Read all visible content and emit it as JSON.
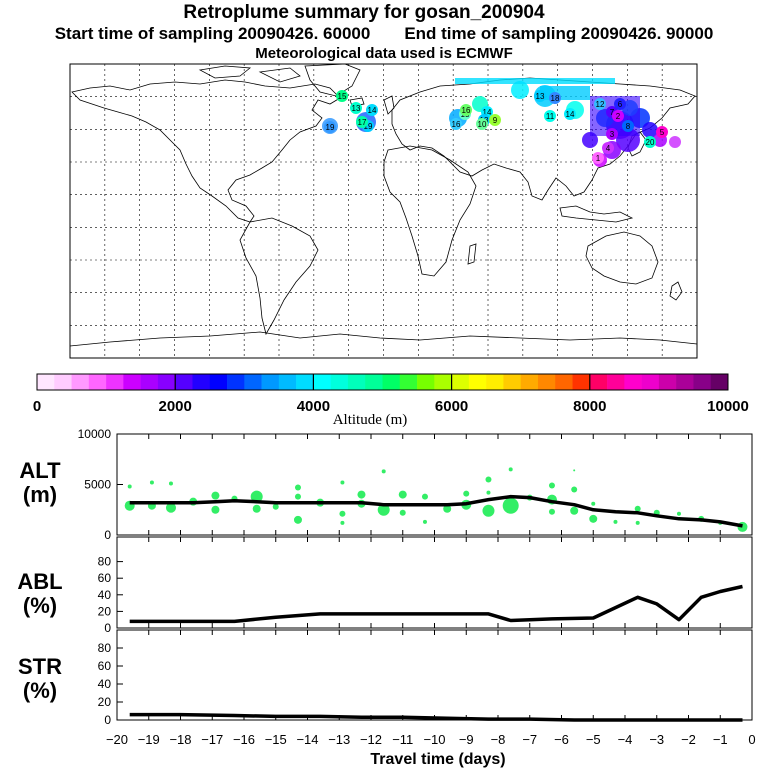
{
  "header": {
    "title": "Retroplume summary for gosan_200904",
    "start_label": "Start time of sampling 20090426. 60000",
    "end_label": "End time of sampling 20090426. 90000",
    "met_label": "Meteorological data used is ECMWF"
  },
  "colorbar": {
    "ticks": [
      "0",
      "2000",
      "4000",
      "6000",
      "8000",
      "10000"
    ],
    "label": "Altitude (m)",
    "colors": [
      "#ffe6ff",
      "#ffccff",
      "#ff99ff",
      "#ff66ff",
      "#ee33ff",
      "#cc00ff",
      "#aa00ff",
      "#8800ff",
      "#5500ff",
      "#2200ff",
      "#0000ff",
      "#0033ff",
      "#0066ff",
      "#0099ff",
      "#00bbff",
      "#00ddff",
      "#00ffff",
      "#00ffdd",
      "#00ffbb",
      "#00ff99",
      "#00ff66",
      "#33ff33",
      "#77ff00",
      "#aaff00",
      "#ddff00",
      "#ffff00",
      "#ffee00",
      "#ffcc00",
      "#ffaa00",
      "#ff8800",
      "#ff6600",
      "#ff3300",
      "#ff0066",
      "#ff0099",
      "#ff00cc",
      "#ee00cc",
      "#cc00aa",
      "#aa0099",
      "#880088",
      "#660066"
    ]
  },
  "map": {
    "labels": [
      "19",
      "19",
      "13",
      "14",
      "13",
      "16",
      "14",
      "13",
      "9",
      "10",
      "11",
      "13",
      "14",
      "12",
      "7",
      "6",
      "4",
      "8",
      "3",
      "5",
      "2",
      "1",
      "16",
      "15",
      "17",
      "18",
      "20"
    ],
    "label_colors": [
      "#3399ff",
      "#00ccff",
      "#00ffcc",
      "#00ddff",
      "#66ffcc",
      "#33ccff",
      "#00eeff",
      "#00ccff",
      "#99ff33",
      "#66ff99",
      "#00ffee",
      "#00ccff",
      "#00eeff",
      "#33bbff",
      "#5500ff",
      "#2222ff",
      "#cc33ff",
      "#0066ff",
      "#aa00ff",
      "#ff00cc",
      "#cc00ff",
      "#ff66ff",
      "#66ff66",
      "#00ff88",
      "#00ffaa",
      "#3388ff",
      "#00ffcc"
    ]
  },
  "chart_data": [
    {
      "type": "line",
      "panel_label": "ALT",
      "unit_label": "(m)",
      "ylim": [
        0,
        10000
      ],
      "yticks": [
        0,
        5000,
        10000
      ],
      "x": [
        -19.6,
        -18.9,
        -18.3,
        -17.6,
        -16.9,
        -16.3,
        -15.6,
        -15,
        -14.3,
        -13.6,
        -12.9,
        -12.3,
        -11.6,
        -11,
        -10.3,
        -9.6,
        -9,
        -8.3,
        -7.6,
        -7,
        -6.3,
        -5.6,
        -5,
        -4.3,
        -3.6,
        -3,
        -2.3,
        -1.6,
        -1,
        -0.3
      ],
      "values": [
        3200,
        3200,
        3200,
        3200,
        3300,
        3400,
        3300,
        3200,
        3200,
        3200,
        3200,
        3200,
        3000,
        3000,
        3000,
        3000,
        3100,
        3500,
        3800,
        3700,
        3300,
        3000,
        2500,
        2300,
        2200,
        1900,
        1600,
        1500,
        1300,
        900
      ],
      "xlabel": "Travel time (days)",
      "points": [
        {
          "x": -19.6,
          "y": 4800,
          "r": 2
        },
        {
          "x": -19.6,
          "y": 2900,
          "r": 5
        },
        {
          "x": -18.9,
          "y": 5200,
          "r": 2
        },
        {
          "x": -18.9,
          "y": 2900,
          "r": 4
        },
        {
          "x": -18.3,
          "y": 5100,
          "r": 2
        },
        {
          "x": -18.3,
          "y": 2700,
          "r": 5
        },
        {
          "x": -17.6,
          "y": 3300,
          "r": 4
        },
        {
          "x": -16.9,
          "y": 3900,
          "r": 4
        },
        {
          "x": -16.9,
          "y": 2500,
          "r": 4
        },
        {
          "x": -16.3,
          "y": 3600,
          "r": 3
        },
        {
          "x": -15.6,
          "y": 3800,
          "r": 6
        },
        {
          "x": -15.6,
          "y": 2600,
          "r": 4
        },
        {
          "x": -15,
          "y": 2800,
          "r": 3
        },
        {
          "x": -14.3,
          "y": 4700,
          "r": 3
        },
        {
          "x": -14.3,
          "y": 3800,
          "r": 3
        },
        {
          "x": -14.3,
          "y": 1500,
          "r": 4
        },
        {
          "x": -13.6,
          "y": 3200,
          "r": 4
        },
        {
          "x": -12.9,
          "y": 5200,
          "r": 2
        },
        {
          "x": -12.9,
          "y": 2100,
          "r": 3
        },
        {
          "x": -12.9,
          "y": 1200,
          "r": 2
        },
        {
          "x": -12.3,
          "y": 4000,
          "r": 4
        },
        {
          "x": -12.3,
          "y": 3100,
          "r": 4
        },
        {
          "x": -11.6,
          "y": 6300,
          "r": 2
        },
        {
          "x": -11.6,
          "y": 2500,
          "r": 6
        },
        {
          "x": -11,
          "y": 4000,
          "r": 4
        },
        {
          "x": -11,
          "y": 2200,
          "r": 3
        },
        {
          "x": -10.3,
          "y": 1300,
          "r": 2
        },
        {
          "x": -10.3,
          "y": 3800,
          "r": 3
        },
        {
          "x": -9.6,
          "y": 2600,
          "r": 4
        },
        {
          "x": -9,
          "y": 4100,
          "r": 3
        },
        {
          "x": -9,
          "y": 3000,
          "r": 5
        },
        {
          "x": -8.3,
          "y": 5500,
          "r": 3
        },
        {
          "x": -8.3,
          "y": 4200,
          "r": 2
        },
        {
          "x": -8.3,
          "y": 2400,
          "r": 6
        },
        {
          "x": -7.6,
          "y": 6500,
          "r": 2
        },
        {
          "x": -7.6,
          "y": 2900,
          "r": 8
        },
        {
          "x": -7,
          "y": 3700,
          "r": 3
        },
        {
          "x": -6.3,
          "y": 4900,
          "r": 3
        },
        {
          "x": -6.3,
          "y": 3500,
          "r": 5
        },
        {
          "x": -6.3,
          "y": 2300,
          "r": 3
        },
        {
          "x": -5.6,
          "y": 6400,
          "r": 1
        },
        {
          "x": -5.6,
          "y": 4500,
          "r": 3
        },
        {
          "x": -5.6,
          "y": 2400,
          "r": 4
        },
        {
          "x": -5,
          "y": 3100,
          "r": 2
        },
        {
          "x": -5,
          "y": 1600,
          "r": 4
        },
        {
          "x": -4.3,
          "y": 1300,
          "r": 2
        },
        {
          "x": -3.6,
          "y": 2600,
          "r": 3
        },
        {
          "x": -3.6,
          "y": 1200,
          "r": 2
        },
        {
          "x": -3,
          "y": 2200,
          "r": 3
        },
        {
          "x": -2.3,
          "y": 2100,
          "r": 2
        },
        {
          "x": -1.6,
          "y": 1600,
          "r": 3
        },
        {
          "x": -1,
          "y": 1200,
          "r": 2
        },
        {
          "x": -0.3,
          "y": 800,
          "r": 5
        }
      ]
    },
    {
      "type": "line",
      "panel_label": "ABL",
      "unit_label": "(%)",
      "ylim": [
        0,
        100
      ],
      "yticks": [
        0,
        20,
        40,
        60,
        80
      ],
      "x": [
        -19.6,
        -18,
        -16.6,
        -16.3,
        -15,
        -13.6,
        -12.3,
        -11,
        -9.6,
        -8.3,
        -7.6,
        -6.3,
        -5,
        -3.6,
        -3,
        -2.3,
        -1.6,
        -1,
        -0.3
      ],
      "values": [
        8,
        8,
        8,
        8,
        13,
        17,
        17,
        17,
        17,
        17,
        9,
        11,
        12,
        37,
        29,
        10,
        37,
        44,
        50
      ],
      "xlabel": "Travel time (days)"
    },
    {
      "type": "line",
      "panel_label": "STR",
      "unit_label": "(%)",
      "ylim": [
        0,
        100
      ],
      "yticks": [
        0,
        20,
        40,
        60,
        80
      ],
      "x": [
        -19.6,
        -18,
        -16.3,
        -15,
        -13.6,
        -12.3,
        -11,
        -9.6,
        -8.3,
        -7,
        -5.6,
        -4.3,
        -3,
        -1.6,
        -0.3
      ],
      "values": [
        6,
        6,
        5,
        4,
        4,
        3,
        3,
        2,
        1,
        1,
        0,
        0,
        0,
        0,
        0
      ],
      "xlabel": "Travel time (days)"
    }
  ],
  "xaxis": {
    "ticks": [
      "-20",
      "-19",
      "-18",
      "-17",
      "-16",
      "-15",
      "-14",
      "-13",
      "-12",
      "-11",
      "-10",
      "-9",
      "-8",
      "-7",
      "-6",
      "-5",
      "-4",
      "-3",
      "-2",
      "-1",
      "0"
    ],
    "label": "Travel time (days)",
    "range": [
      -20,
      0
    ]
  }
}
